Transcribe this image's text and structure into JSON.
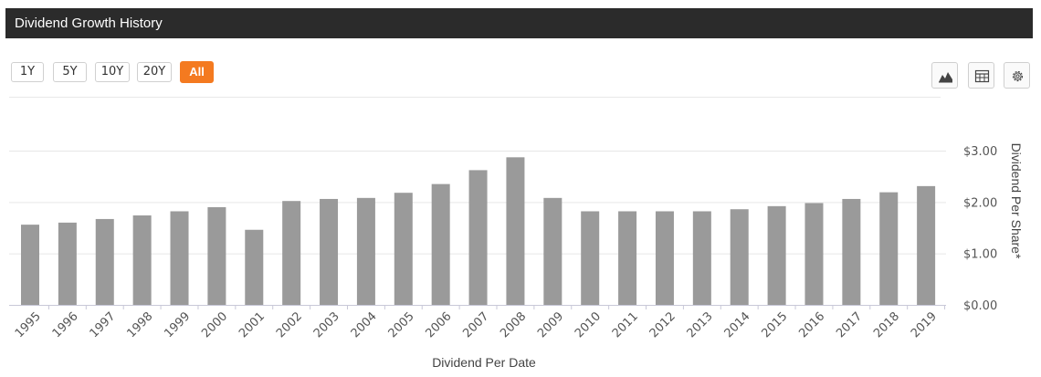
{
  "header": {
    "title": "Dividend Growth History"
  },
  "range_buttons": [
    "1Y",
    "5Y",
    "10Y",
    "20Y",
    "All"
  ],
  "active_range": "All",
  "toolbar": {
    "icons": [
      "area-chart-icon",
      "table-icon",
      "gear-icon"
    ]
  },
  "colors": {
    "accent": "#f47a20",
    "bar": "#9a9a9a",
    "header_bg": "#2b2b2b"
  },
  "chart_data": {
    "type": "bar",
    "categories": [
      "1995",
      "1996",
      "1997",
      "1998",
      "1999",
      "2000",
      "2001",
      "2002",
      "2003",
      "2004",
      "2005",
      "2006",
      "2007",
      "2008",
      "2009",
      "2010",
      "2011",
      "2012",
      "2013",
      "2014",
      "2015",
      "2016",
      "2017",
      "2018",
      "2019"
    ],
    "values": [
      1.56,
      1.6,
      1.67,
      1.74,
      1.82,
      1.9,
      1.46,
      2.02,
      2.06,
      2.08,
      2.18,
      2.35,
      2.62,
      2.87,
      2.08,
      1.82,
      1.82,
      1.82,
      1.82,
      1.86,
      1.92,
      1.98,
      2.06,
      2.19,
      2.31
    ],
    "xlabel": "Dividend Per Date",
    "ylabel": "Dividend Per Share*",
    "ylim": [
      0,
      3
    ],
    "yticks": [
      "$0.00",
      "$1.00",
      "$2.00",
      "$3.00"
    ],
    "grid": true,
    "y_axis_side": "right"
  }
}
